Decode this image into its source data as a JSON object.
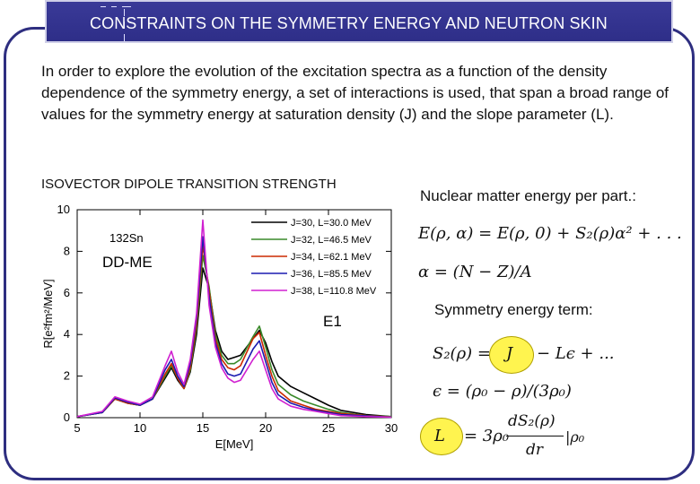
{
  "slide": {
    "title": "CONSTRAINTS ON THE SYMMETRY ENERGY AND NEUTRON SKIN",
    "intro": "In order to explore the evolution of the excitation spectra as a function of the density dependence of the symmetry energy, a set of interactions is used, that span a broad range of values for the symmetry energy at saturation density (J) and the slope parameter (L).",
    "plot_heading": "ISOVECTOR DIPOLE TRANSITION STRENGTH",
    "energy_heading": "Nuclear matter energy per part.:",
    "symmetry_heading": "Symmetry energy term:",
    "eq1": "E(ρ, α) = E(ρ, 0) + S₂(ρ)α² + . . .",
    "eq2": "α = (N − Z)/A",
    "eq3_lhs": "S₂(ρ) =",
    "eq3_J": "J",
    "eq3_rhs": "− Lϵ + ...",
    "eq4": "ϵ = (ρ₀ − ρ)/(3ρ₀)",
    "eq5_L": "L",
    "eq5_rhs_a": "= 3ρ₀",
    "eq5_num": "dS₂(ρ)",
    "eq5_den": "dr",
    "eq5_sub": "|ρ₀"
  },
  "colors": {
    "title_bg": "#2e2e88",
    "frame": "#2e2e80",
    "highlight": "#fff44f"
  },
  "chart_data": {
    "type": "line",
    "xlabel": "E[MeV]",
    "ylabel": "R[e²fm²/MeV]",
    "xlim": [
      5,
      30
    ],
    "ylim": [
      0,
      10
    ],
    "xticks": [
      5,
      10,
      15,
      20,
      25,
      30
    ],
    "yticks": [
      0,
      2,
      4,
      6,
      8,
      10
    ],
    "annotations": {
      "nucleus": "132Sn",
      "model": "DD-ME",
      "mode": "E1"
    },
    "legend_position": "top-right",
    "series": [
      {
        "name": "J=30, L=30.0 MeV",
        "color": "#000000",
        "x": [
          5,
          7,
          8,
          9,
          10,
          11,
          12,
          12.5,
          13,
          13.5,
          14,
          14.5,
          15,
          15.5,
          16,
          16.5,
          17,
          17.5,
          18,
          19,
          19.5,
          20,
          20.5,
          21,
          22,
          23,
          24,
          25,
          26,
          28,
          30
        ],
        "y": [
          0.05,
          0.25,
          0.9,
          0.7,
          0.6,
          0.9,
          1.9,
          2.4,
          1.8,
          1.4,
          2.2,
          4.0,
          7.2,
          6.2,
          4.2,
          3.2,
          2.8,
          2.9,
          3.0,
          3.8,
          4.2,
          3.6,
          2.7,
          2.0,
          1.5,
          1.2,
          0.9,
          0.6,
          0.35,
          0.15,
          0.05
        ]
      },
      {
        "name": "J=32, L=46.5 MeV",
        "color": "#3a8a2a",
        "x": [
          5,
          7,
          8,
          9,
          10,
          11,
          12,
          12.5,
          13,
          13.5,
          14,
          14.5,
          15,
          15.5,
          16,
          16.5,
          17,
          17.5,
          18,
          19,
          19.5,
          20,
          20.5,
          21,
          22,
          23,
          24,
          25,
          26,
          28,
          30
        ],
        "y": [
          0.05,
          0.25,
          0.9,
          0.7,
          0.6,
          0.9,
          2.0,
          2.5,
          1.9,
          1.4,
          2.3,
          4.3,
          7.8,
          6.3,
          4.0,
          3.0,
          2.6,
          2.6,
          2.8,
          3.9,
          4.4,
          3.4,
          2.3,
          1.6,
          1.1,
          0.8,
          0.6,
          0.4,
          0.25,
          0.1,
          0.05
        ]
      },
      {
        "name": "J=34, L=62.1 MeV",
        "color": "#cc2a00",
        "x": [
          5,
          7,
          8,
          9,
          10,
          11,
          12,
          12.5,
          13,
          13.5,
          14,
          14.5,
          15,
          15.5,
          16,
          16.5,
          17,
          17.5,
          18,
          19,
          19.5,
          20,
          20.5,
          21,
          22,
          23,
          24,
          25,
          26,
          28,
          30
        ],
        "y": [
          0.05,
          0.25,
          0.9,
          0.7,
          0.6,
          0.9,
          2.1,
          2.6,
          1.9,
          1.4,
          2.4,
          4.5,
          8.3,
          6.1,
          3.8,
          2.8,
          2.4,
          2.3,
          2.5,
          3.8,
          4.1,
          3.0,
          2.0,
          1.3,
          0.8,
          0.6,
          0.4,
          0.3,
          0.2,
          0.1,
          0.03
        ]
      },
      {
        "name": "J=36, L=85.5 MeV",
        "color": "#1a1ab0",
        "x": [
          5,
          7,
          8,
          9,
          10,
          11,
          12,
          12.5,
          13,
          13.5,
          14,
          14.5,
          15,
          15.5,
          16,
          16.5,
          17,
          17.5,
          18,
          19,
          19.5,
          20,
          20.5,
          21,
          22,
          23,
          24,
          25,
          26,
          28,
          30
        ],
        "y": [
          0.05,
          0.25,
          0.95,
          0.75,
          0.6,
          0.9,
          2.3,
          2.8,
          2.0,
          1.5,
          2.6,
          4.8,
          8.7,
          5.8,
          3.6,
          2.6,
          2.1,
          2.0,
          2.1,
          3.3,
          3.7,
          2.7,
          1.7,
          1.1,
          0.7,
          0.5,
          0.35,
          0.25,
          0.15,
          0.08,
          0.02
        ]
      },
      {
        "name": "J=38, L=110.8 MeV",
        "color": "#d020d0",
        "x": [
          5,
          7,
          8,
          9,
          10,
          11,
          12,
          12.5,
          13,
          13.5,
          14,
          14.5,
          15,
          15.5,
          16,
          16.5,
          17,
          17.5,
          18,
          19,
          19.5,
          20,
          20.5,
          21,
          22,
          23,
          24,
          25,
          26,
          28,
          30
        ],
        "y": [
          0.05,
          0.3,
          1.0,
          0.8,
          0.65,
          1.0,
          2.5,
          3.2,
          2.2,
          1.6,
          2.8,
          5.0,
          9.5,
          5.4,
          3.4,
          2.4,
          1.9,
          1.7,
          1.8,
          2.8,
          3.2,
          2.3,
          1.4,
          0.9,
          0.55,
          0.4,
          0.3,
          0.2,
          0.1,
          0.05,
          0.02
        ]
      }
    ]
  }
}
